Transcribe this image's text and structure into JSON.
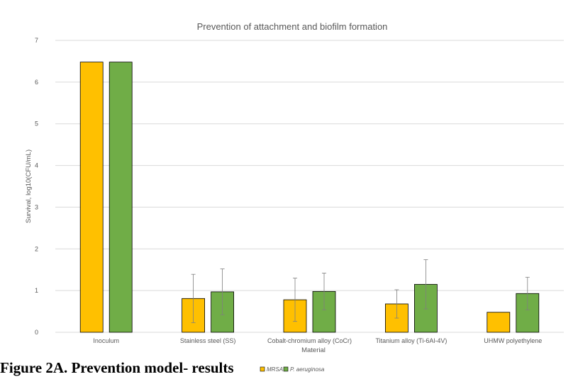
{
  "caption": "Figure 2A. Prevention model- results",
  "chart_data": {
    "type": "bar",
    "title": "Prevention of attachment and biofilm formation",
    "xlabel": "Material",
    "ylabel": "Survival, log10(CFU/mL)",
    "ylim": [
      0,
      7
    ],
    "yticks": [
      "0",
      "1",
      "2",
      "3",
      "4",
      "5",
      "6",
      "7"
    ],
    "grid": true,
    "legend_position": "bottom",
    "categories": [
      "Inoculum",
      "Stainless steel (SS)",
      "Cobalt-chromium alloy (CoCr)",
      "Titanium alloy (Ti-6Al-4V)",
      "UHMW polyethylene"
    ],
    "series": [
      {
        "name": "MRSA",
        "color": "#FFC000",
        "values": [
          6.48,
          0.81,
          0.78,
          0.68,
          0.48
        ],
        "errors": [
          null,
          0.58,
          0.52,
          0.34,
          null
        ]
      },
      {
        "name": "P. aeruginosa",
        "color": "#70AD47",
        "values": [
          6.48,
          0.97,
          0.98,
          1.15,
          0.93
        ],
        "errors": [
          null,
          0.55,
          0.44,
          0.59,
          0.39
        ]
      }
    ]
  }
}
